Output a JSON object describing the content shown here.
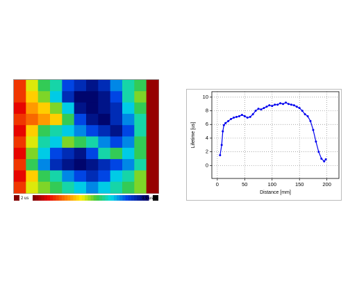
{
  "chart_data": [
    {
      "type": "heatmap",
      "values": [
        [
          3.5,
          5.5,
          6.5,
          7,
          8.5,
          9,
          9.5,
          9,
          8,
          7,
          6.5,
          2.2
        ],
        [
          3.5,
          5,
          6,
          7.5,
          9,
          9.8,
          9.8,
          9.5,
          8.5,
          7,
          6,
          2.2
        ],
        [
          3,
          4.5,
          5,
          6,
          7.5,
          9.5,
          9.8,
          9.5,
          9,
          7.5,
          6.5,
          2.2
        ],
        [
          3.5,
          4,
          4.5,
          5,
          6.5,
          8.5,
          9.5,
          9.8,
          9,
          8,
          7,
          2.2
        ],
        [
          3,
          5,
          6.5,
          7,
          7.5,
          8,
          8.5,
          9,
          9.5,
          8.5,
          7,
          2.2
        ],
        [
          3.5,
          5.5,
          7,
          7.5,
          6,
          6.5,
          7,
          8,
          8.5,
          8,
          6.5,
          2.2
        ],
        [
          3,
          6,
          7.5,
          8.5,
          9,
          9.5,
          8.5,
          7,
          6.5,
          7.5,
          6.5,
          2.2
        ],
        [
          3.5,
          6.5,
          8,
          9,
          9.5,
          9.8,
          9.5,
          9,
          8.5,
          8,
          7,
          2.2
        ],
        [
          3,
          5,
          6.5,
          7,
          8,
          8.5,
          9,
          8.5,
          7.5,
          7,
          6,
          2.2
        ],
        [
          3.5,
          5.5,
          6,
          6.5,
          7,
          7.5,
          8,
          7.5,
          7,
          6.5,
          6,
          2.2
        ]
      ],
      "zlim": [
        2,
        9.9
      ],
      "zticks": [
        {
          "value": 2,
          "label": "2 us"
        },
        {
          "value": 9.9,
          "label": "9.9 us"
        }
      ]
    },
    {
      "type": "line",
      "x_label": "Distance [mm]",
      "y_label": "Lifetime [us]",
      "x": [
        5,
        8,
        10,
        12,
        15,
        20,
        25,
        30,
        35,
        40,
        45,
        50,
        55,
        60,
        65,
        70,
        75,
        80,
        85,
        90,
        95,
        100,
        105,
        110,
        115,
        120,
        125,
        130,
        135,
        140,
        145,
        150,
        155,
        160,
        165,
        170,
        175,
        180,
        185,
        190,
        195,
        198
      ],
      "series": [
        {
          "color": "#0000ee",
          "values": [
            1.5,
            3,
            5,
            5.9,
            6.2,
            6.5,
            6.8,
            7,
            7.1,
            7.2,
            7.4,
            7.2,
            7,
            7.1,
            7.5,
            8,
            8.3,
            8.2,
            8.4,
            8.6,
            8.8,
            8.7,
            8.9,
            8.9,
            9.1,
            9.0,
            9.2,
            9.0,
            8.9,
            8.8,
            8.6,
            8.4,
            8.0,
            7.5,
            7.2,
            6.5,
            5.2,
            3.5,
            2.0,
            1.0,
            0.6,
            0.9
          ]
        }
      ],
      "xlim": [
        -10,
        222
      ],
      "ylim": [
        -1.9,
        10.8
      ],
      "xticks": [
        0,
        50,
        100,
        150,
        200
      ],
      "yticks": [
        0,
        2,
        4,
        6,
        8,
        10
      ],
      "grid": true
    }
  ]
}
